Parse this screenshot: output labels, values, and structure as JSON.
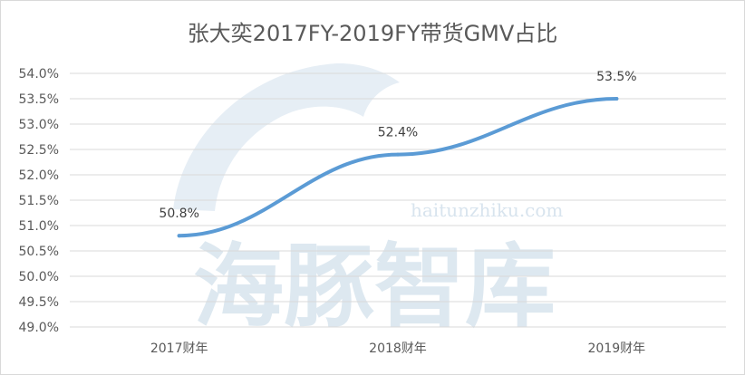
{
  "watermark": {
    "domain": "haitunzhiku.com",
    "text": "海豚智库"
  },
  "chart_data": {
    "type": "line",
    "title": "张大奕2017FY-2019FY带货GMV占比",
    "categories": [
      "2017财年",
      "2018财年",
      "2019财年"
    ],
    "series": [
      {
        "values": [
          50.8,
          52.4,
          53.5
        ],
        "labels": [
          "50.8%",
          "52.4%",
          "53.5%"
        ],
        "color": "#5b9bd5"
      }
    ],
    "ylim": [
      49.0,
      54.0
    ],
    "yticks": [
      "54.0%",
      "53.5%",
      "53.0%",
      "52.5%",
      "52.0%",
      "51.5%",
      "51.0%",
      "50.5%",
      "50.0%",
      "49.5%",
      "49.0%"
    ],
    "ytick_values": [
      54.0,
      53.5,
      53.0,
      52.5,
      52.0,
      51.5,
      51.0,
      50.5,
      50.0,
      49.5,
      49.0
    ],
    "grid": true,
    "legend": "none"
  }
}
